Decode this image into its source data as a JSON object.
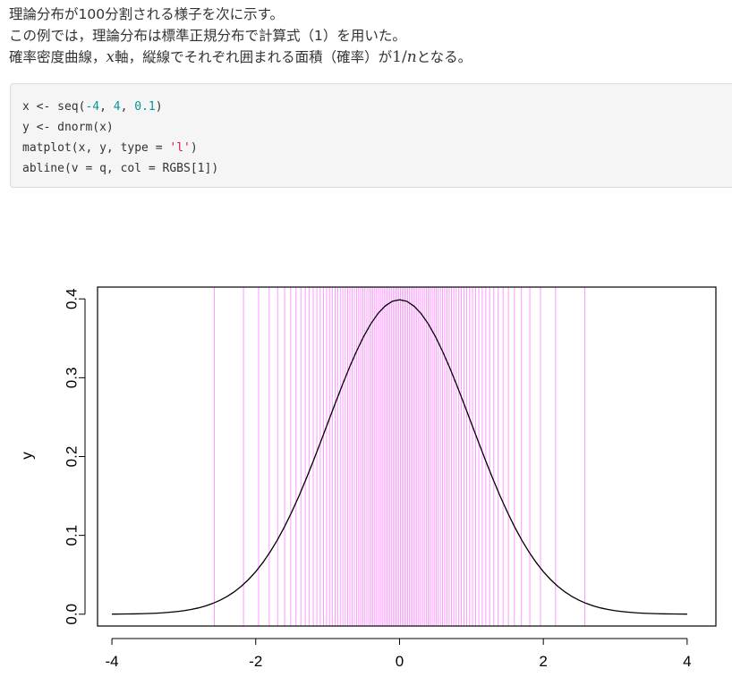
{
  "prose": {
    "line1": "理論分布が100分割される様子を次に示す。",
    "line2": "この例では，理論分布は標準正規分布で計算式（1）を用いた。",
    "line3_prefix": "確率密度曲線，",
    "line3_math_x": "x",
    "line3_mid": "軸，縦線でそれぞれ囲まれる面積（確率）が",
    "line3_math_one": "1",
    "line3_math_slash": "/",
    "line3_math_n": "n",
    "line3_suffix": "となる。"
  },
  "code": {
    "line1": {
      "a": "x <- seq(-4, ",
      "n1": "-4",
      "b": ", ",
      "n2": "4",
      "c": ", ",
      "n3": "0.1",
      "d": ")"
    },
    "line2": "y <- dnorm(x)",
    "line3": {
      "a": "matplot(x, y, type = ",
      "s": "'l'",
      "b": ")"
    },
    "line4": "abline(v = q, col = RGBS[1])"
  },
  "chart_data": {
    "type": "line",
    "title": "",
    "xlabel": "",
    "ylabel": "y",
    "xlim": [
      -4.2,
      4.4
    ],
    "ylim": [
      -0.015,
      0.415
    ],
    "xticks": [
      -4,
      -2,
      0,
      2,
      4
    ],
    "xtick_labels": [
      "-4",
      "-2",
      "0",
      "2",
      "4"
    ],
    "yticks": [
      0.0,
      0.1,
      0.2,
      0.3,
      0.4
    ],
    "ytick_labels": [
      "0.0",
      "0.1",
      "0.2",
      "0.3",
      "0.4"
    ],
    "grid": false,
    "series": [
      {
        "x": [
          -4.0,
          -3.9,
          -3.8,
          -3.7,
          -3.6,
          -3.5,
          -3.4,
          -3.3,
          -3.2,
          -3.1,
          -3.0,
          -2.9,
          -2.8,
          -2.7,
          -2.6,
          -2.5,
          -2.4,
          -2.3,
          -2.2,
          -2.1,
          -2.0,
          -1.9,
          -1.8,
          -1.7,
          -1.6,
          -1.5,
          -1.4,
          -1.3,
          -1.2,
          -1.1,
          -1.0,
          -0.9,
          -0.8,
          -0.7,
          -0.6,
          -0.5,
          -0.4,
          -0.3,
          -0.2,
          -0.1,
          0.0,
          0.1,
          0.2,
          0.3,
          0.4,
          0.5,
          0.6,
          0.7,
          0.8,
          0.9,
          1.0,
          1.1,
          1.2,
          1.3,
          1.4,
          1.5,
          1.6,
          1.7,
          1.8,
          1.9,
          2.0,
          2.1,
          2.2,
          2.3,
          2.4,
          2.5,
          2.6,
          2.7,
          2.8,
          2.9,
          3.0,
          3.1,
          3.2,
          3.3,
          3.4,
          3.5,
          3.6,
          3.7,
          3.8,
          3.9,
          4.0
        ],
        "y": [
          0.0001,
          0.0002,
          0.0003,
          0.0004,
          0.0006,
          0.0009,
          0.0012,
          0.0017,
          0.0024,
          0.0033,
          0.0044,
          0.006,
          0.0079,
          0.0104,
          0.0136,
          0.0175,
          0.0224,
          0.0283,
          0.0355,
          0.044,
          0.054,
          0.0656,
          0.079,
          0.094,
          0.1109,
          0.1295,
          0.1497,
          0.1714,
          0.1942,
          0.2179,
          0.242,
          0.2661,
          0.2897,
          0.3123,
          0.3332,
          0.3521,
          0.3683,
          0.3814,
          0.391,
          0.397,
          0.3989,
          0.397,
          0.391,
          0.3814,
          0.3683,
          0.3521,
          0.3332,
          0.3123,
          0.2897,
          0.2661,
          0.242,
          0.2179,
          0.1942,
          0.1714,
          0.1497,
          0.1295,
          0.1109,
          0.094,
          0.079,
          0.0656,
          0.054,
          0.044,
          0.0355,
          0.0283,
          0.0224,
          0.0175,
          0.0136,
          0.0104,
          0.0079,
          0.006,
          0.0044,
          0.0033,
          0.0024,
          0.0017,
          0.0012,
          0.0009,
          0.0006,
          0.0004,
          0.0003,
          0.0002,
          0.0001
        ],
        "color": "#000000"
      }
    ],
    "vlines": {
      "color": "#ff99ff",
      "x": [
        -2.576,
        -2.17,
        -1.96,
        -1.812,
        -1.695,
        -1.598,
        -1.514,
        -1.44,
        -1.372,
        -1.311,
        -1.254,
        -1.2,
        -1.15,
        -1.103,
        -1.058,
        -1.015,
        -0.974,
        -0.935,
        -0.896,
        -0.86,
        -0.824,
        -0.789,
        -0.755,
        -0.722,
        -0.69,
        -0.659,
        -0.628,
        -0.598,
        -0.568,
        -0.539,
        -0.51,
        -0.482,
        -0.454,
        -0.426,
        -0.399,
        -0.372,
        -0.345,
        -0.319,
        -0.292,
        -0.266,
        -0.24,
        -0.215,
        -0.189,
        -0.164,
        -0.138,
        -0.113,
        -0.088,
        -0.063,
        -0.038,
        -0.013,
        0.013,
        0.038,
        0.063,
        0.088,
        0.113,
        0.138,
        0.164,
        0.189,
        0.215,
        0.24,
        0.266,
        0.292,
        0.319,
        0.345,
        0.372,
        0.399,
        0.426,
        0.454,
        0.482,
        0.51,
        0.539,
        0.568,
        0.598,
        0.628,
        0.659,
        0.69,
        0.722,
        0.755,
        0.789,
        0.824,
        0.86,
        0.896,
        0.935,
        0.974,
        1.015,
        1.058,
        1.103,
        1.15,
        1.2,
        1.254,
        1.311,
        1.372,
        1.44,
        1.514,
        1.598,
        1.695,
        1.812,
        1.96,
        2.17,
        2.576
      ]
    }
  }
}
